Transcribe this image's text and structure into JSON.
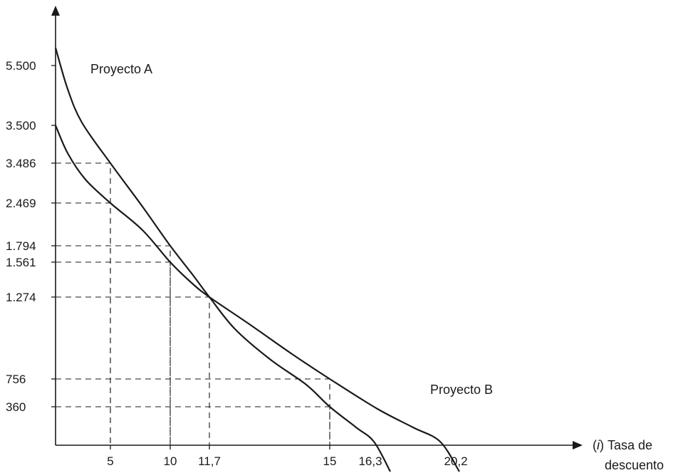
{
  "chart_data": {
    "type": "line",
    "title": "",
    "xlabel": {
      "open": "(",
      "symbol": "i",
      "close": ")",
      "line1": "Tasa de",
      "line2": "descuento"
    },
    "ylabel": "",
    "grid": false,
    "legend": "none",
    "x_ticks": [
      "5",
      "10",
      "11,7",
      "15",
      "16,3",
      "20,2"
    ],
    "y_ticks": [
      "5.500",
      "3.500",
      "3.486",
      "2.469",
      "1.794",
      "1.561",
      "1.274",
      "756",
      "360"
    ],
    "series": [
      {
        "name": "Proyecto A",
        "label": "Proyecto A",
        "color": "#1a1a1a",
        "x": [
          0,
          2.5,
          5,
          7.5,
          10,
          11.7,
          13.5,
          15,
          17.5
        ],
        "y": [
          5500,
          4400,
          3486,
          2600,
          1794,
          1274,
          780,
          360,
          -300
        ]
      },
      {
        "name": "Proyecto B",
        "label": "Proyecto B",
        "color": "#1a1a1a",
        "x": [
          0,
          2.5,
          5,
          7.5,
          10,
          11.7,
          13.5,
          15,
          18,
          20.2,
          21.5
        ],
        "y": [
          3500,
          2950,
          2469,
          2000,
          1561,
          1274,
          1000,
          756,
          300,
          0,
          -200
        ]
      }
    ],
    "guides": [
      {
        "x": 5,
        "y": 3486
      },
      {
        "x": 5,
        "y": 2469
      },
      {
        "x": 10,
        "y": 1794
      },
      {
        "x": 10,
        "y": 1561
      },
      {
        "x": 11.7,
        "y": 1274
      },
      {
        "x": 15,
        "y": 756
      },
      {
        "x": 15,
        "y": 360
      }
    ]
  }
}
